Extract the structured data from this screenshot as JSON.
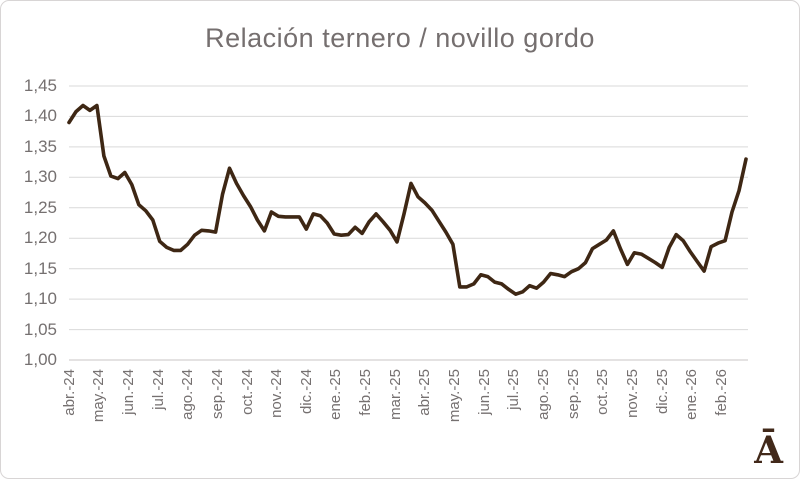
{
  "chart_data": {
    "type": "line",
    "title": "Relación ternero / novillo gordo",
    "xlabel": "",
    "ylabel": "",
    "ylim": [
      1.0,
      1.45
    ],
    "y_tick_step": 0.05,
    "y_tick_labels": [
      "1,45",
      "1,40",
      "1,35",
      "1,30",
      "1,25",
      "1,20",
      "1,15",
      "1,10",
      "1,05",
      "1,00"
    ],
    "y_tick_values": [
      1.45,
      1.4,
      1.35,
      1.3,
      1.25,
      1.2,
      1.15,
      1.1,
      1.05,
      1.0
    ],
    "x_tick_labels": [
      "abr.-24",
      "may.-24",
      "jun.-24",
      "jul.-24",
      "ago.-24",
      "sep.-24",
      "oct.-24",
      "nov.-24",
      "dic.-24",
      "ene.-25",
      "feb.-25",
      "mar.-25",
      "abr.-25",
      "may.-25",
      "jun.-25",
      "jul.-25",
      "ago.-25",
      "sep.-25",
      "oct.-25",
      "nov.-25",
      "dic.-25",
      "ene.-26",
      "feb.-26"
    ],
    "grid": true,
    "legend": false,
    "series": [
      {
        "name": "Relación ternero / novillo gordo",
        "cadence": "weekly",
        "values": [
          1.39,
          1.408,
          1.418,
          1.41,
          1.418,
          1.335,
          1.302,
          1.298,
          1.308,
          1.288,
          1.255,
          1.245,
          1.23,
          1.195,
          1.185,
          1.18,
          1.18,
          1.19,
          1.205,
          1.213,
          1.212,
          1.21,
          1.272,
          1.315,
          1.29,
          1.27,
          1.252,
          1.23,
          1.212,
          1.243,
          1.236,
          1.235,
          1.235,
          1.235,
          1.215,
          1.24,
          1.237,
          1.225,
          1.207,
          1.205,
          1.206,
          1.218,
          1.208,
          1.227,
          1.24,
          1.227,
          1.213,
          1.194,
          1.24,
          1.29,
          1.268,
          1.258,
          1.246,
          1.228,
          1.21,
          1.19,
          1.12,
          1.12,
          1.125,
          1.14,
          1.137,
          1.128,
          1.125,
          1.116,
          1.108,
          1.112,
          1.122,
          1.118,
          1.128,
          1.142,
          1.14,
          1.137,
          1.145,
          1.15,
          1.16,
          1.183,
          1.19,
          1.197,
          1.212,
          1.183,
          1.157,
          1.176,
          1.174,
          1.167,
          1.16,
          1.152,
          1.185,
          1.206,
          1.196,
          1.178,
          1.162,
          1.146,
          1.186,
          1.192,
          1.196,
          1.243,
          1.278,
          1.33
        ]
      }
    ],
    "colors": {
      "line": "#3e2714",
      "grid": "#d9d9d9",
      "axis": "#c9c6c6",
      "tick_text": "#757070",
      "title_text": "#756f6f"
    }
  },
  "logo": {
    "glyph": "Ā",
    "color": "#42291a"
  }
}
